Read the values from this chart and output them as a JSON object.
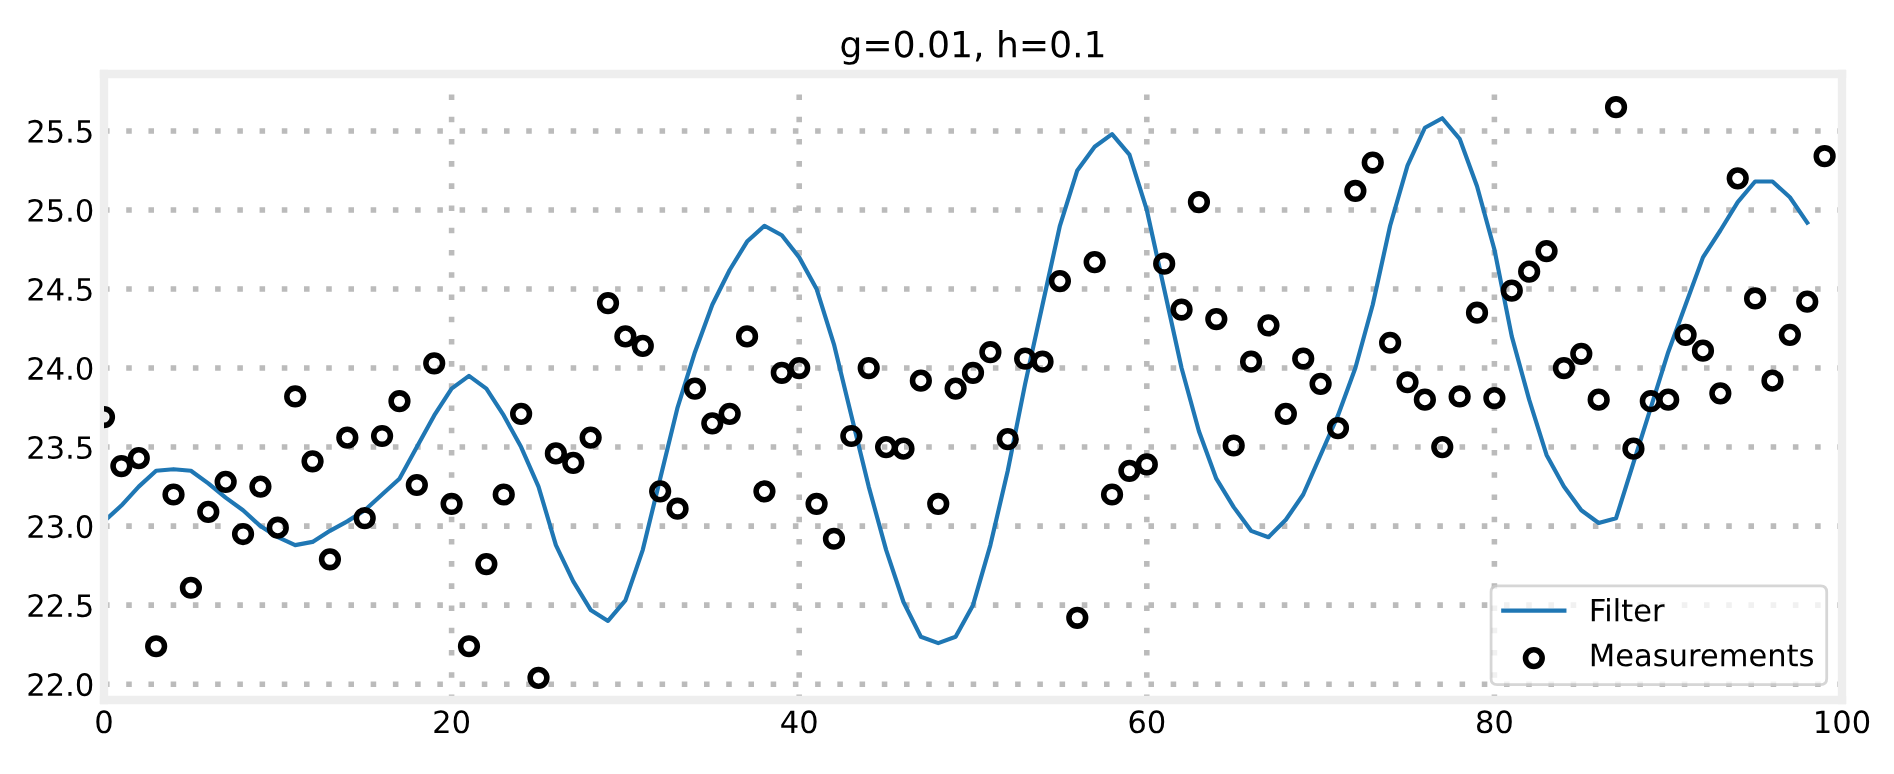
{
  "chart_data": {
    "type": "scatter",
    "title": "g=0.01, h=0.1",
    "series": [
      {
        "name": "Filter",
        "type": "line",
        "color": "#1f77b4",
        "marker": "none",
        "line_style": "solid",
        "x": [
          0,
          1,
          2,
          3,
          4,
          5,
          6,
          7,
          8,
          9,
          10,
          11,
          12,
          13,
          14,
          15,
          16,
          17,
          18,
          19,
          20,
          21,
          22,
          23,
          24,
          25,
          26,
          27,
          28,
          29,
          30,
          31,
          32,
          33,
          34,
          35,
          36,
          37,
          38,
          39,
          40,
          41,
          42,
          43,
          44,
          45,
          46,
          47,
          48,
          49,
          50,
          51,
          52,
          53,
          54,
          55,
          56,
          57,
          58,
          59,
          60,
          61,
          62,
          63,
          64,
          65,
          66,
          67,
          68,
          69,
          70,
          71,
          72,
          73,
          74,
          75,
          76,
          77,
          78,
          79,
          80,
          81,
          82,
          83,
          84,
          85,
          86,
          87,
          88,
          89,
          90,
          91,
          92,
          93,
          94,
          95,
          96,
          97,
          98
        ],
        "values": [
          23.03,
          23.13,
          23.25,
          23.35,
          23.36,
          23.35,
          23.27,
          23.18,
          23.1,
          23.0,
          22.93,
          22.88,
          22.9,
          22.97,
          23.03,
          23.1,
          23.2,
          23.3,
          23.5,
          23.7,
          23.87,
          23.95,
          23.87,
          23.7,
          23.5,
          23.25,
          22.88,
          22.65,
          22.47,
          22.4,
          22.53,
          22.85,
          23.3,
          23.75,
          24.1,
          24.4,
          24.62,
          24.8,
          24.9,
          24.84,
          24.7,
          24.5,
          24.15,
          23.7,
          23.25,
          22.85,
          22.52,
          22.3,
          22.26,
          22.3,
          22.5,
          22.88,
          23.35,
          23.9,
          24.4,
          24.9,
          25.25,
          25.4,
          25.48,
          25.35,
          25.0,
          24.5,
          24.0,
          23.6,
          23.3,
          23.12,
          22.97,
          22.93,
          23.04,
          23.2,
          23.45,
          23.7,
          24.0,
          24.4,
          24.9,
          25.28,
          25.52,
          25.58,
          25.45,
          25.15,
          24.75,
          24.2,
          23.8,
          23.45,
          23.25,
          23.1,
          23.02,
          23.05,
          23.4,
          23.75,
          24.1,
          24.4,
          24.7,
          24.87,
          25.05,
          25.18,
          25.18,
          25.08,
          24.92
        ]
      },
      {
        "name": "Measurements",
        "color": "#000000",
        "marker": "circle",
        "x": [
          0,
          1,
          2,
          3,
          4,
          5,
          6,
          7,
          8,
          9,
          10,
          11,
          12,
          13,
          14,
          15,
          16,
          17,
          18,
          19,
          20,
          21,
          22,
          23,
          24,
          25,
          26,
          27,
          28,
          29,
          30,
          31,
          32,
          33,
          34,
          35,
          36,
          37,
          38,
          39,
          40,
          41,
          42,
          43,
          44,
          45,
          46,
          47,
          48,
          49,
          50,
          51,
          52,
          53,
          54,
          55,
          56,
          57,
          58,
          59,
          60,
          61,
          62,
          63,
          64,
          65,
          66,
          67,
          68,
          69,
          70,
          71,
          72,
          73,
          74,
          75,
          76,
          77,
          78,
          79,
          80,
          81,
          82,
          83,
          84,
          85,
          86,
          87,
          88,
          89,
          90,
          91,
          92,
          93,
          94,
          95,
          96,
          97,
          98,
          99
        ],
        "values": [
          23.69,
          23.38,
          23.43,
          22.24,
          23.2,
          22.61,
          23.09,
          23.28,
          22.95,
          23.25,
          22.99,
          23.82,
          23.41,
          22.79,
          23.56,
          23.05,
          23.57,
          23.79,
          23.26,
          24.03,
          23.14,
          22.24,
          22.76,
          23.2,
          23.71,
          22.04,
          23.46,
          23.4,
          23.56,
          24.41,
          24.2,
          24.14,
          23.22,
          23.11,
          23.87,
          23.65,
          23.71,
          24.2,
          23.22,
          23.97,
          24.0,
          23.14,
          22.92,
          23.57,
          24.0,
          23.5,
          23.49,
          23.92,
          23.14,
          23.87,
          23.97,
          24.1,
          23.55,
          24.06,
          24.04,
          24.55,
          22.42,
          24.67,
          23.2,
          23.35,
          23.39,
          24.66,
          24.37,
          25.05,
          24.31,
          23.51,
          24.04,
          24.27,
          23.71,
          24.06,
          23.9,
          23.62,
          25.12,
          25.3,
          24.16,
          23.91,
          23.8,
          23.5,
          23.82,
          24.35,
          23.81,
          24.49,
          24.61,
          24.74,
          24.0,
          24.09,
          23.8,
          25.65,
          23.49,
          23.79,
          23.8,
          24.21,
          24.11,
          23.84,
          25.2,
          24.44,
          23.92,
          24.21,
          24.42,
          25.34
        ]
      }
    ],
    "xlim": [
      0,
      100
    ],
    "xticks": [
      0,
      20,
      40,
      60,
      80,
      100
    ],
    "ylim": [
      21.9,
      25.86
    ],
    "yticks": [
      {
        "value": 22.0,
        "label": "22.0"
      },
      {
        "value": 22.5,
        "label": "22.5"
      },
      {
        "value": 23.0,
        "label": "23.0"
      },
      {
        "value": 23.5,
        "label": "23.5"
      },
      {
        "value": 24.0,
        "label": "24.0"
      },
      {
        "value": 24.5,
        "label": "24.5"
      },
      {
        "value": 25.0,
        "label": "25.0"
      },
      {
        "value": 25.5,
        "label": "25.5"
      }
    ],
    "grid": true,
    "legend": "bottom right"
  }
}
